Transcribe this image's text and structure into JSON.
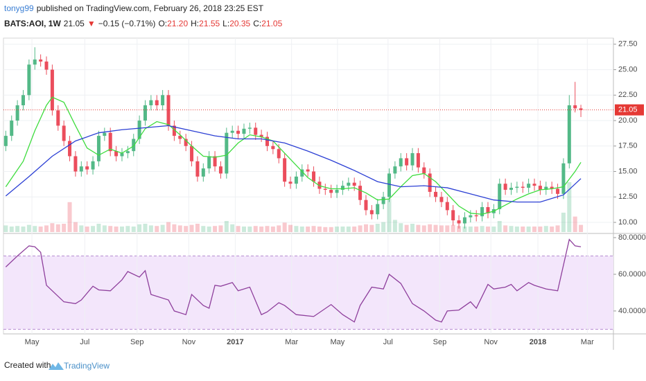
{
  "header": {
    "author": "tonyg99",
    "published": "published on TradingView.com, February 26, 2018 23:25 EST",
    "symbol": "BATS:AOI, 1W",
    "last": "21.05",
    "arrow": "▼",
    "change": "−0.15 (−0.71%)",
    "ohlc": [
      {
        "key": "O:",
        "value": "21.20"
      },
      {
        "key": "H:",
        "value": "21.55"
      },
      {
        "key": "L:",
        "value": "20.35"
      },
      {
        "key": "C:",
        "value": "21.05"
      }
    ]
  },
  "footer": {
    "created": "Created with",
    "brand": "TradingView"
  },
  "chart_data": {
    "type": "candlestick",
    "up_color": "#53b987",
    "down_color": "#eb4d5c",
    "open": [
      17.5,
      18.5,
      20,
      21.5,
      22.5,
      25.5,
      26,
      25.8,
      25,
      21,
      19.5,
      18,
      16.5,
      15,
      15.5,
      15.2,
      16,
      18.5,
      18.8,
      17,
      16.5,
      16.8,
      17,
      18.2,
      20,
      21.5,
      22,
      21.5,
      22.5,
      19.5,
      18.5,
      18.2,
      17.5,
      16,
      14.5,
      15.3,
      16.5,
      15.5,
      14.8,
      18.8,
      19,
      18.7,
      19.2,
      19.3,
      18.6,
      18.4,
      17.5,
      17.2,
      16.3,
      14,
      13.8,
      14.5,
      15.2,
      15,
      14,
      13.3,
      13.2,
      12.9,
      13.2,
      13.6,
      13.9,
      13.6,
      12.2,
      11.2,
      10.8,
      11.8,
      12.5,
      14.8,
      15.5,
      16.3,
      15.6,
      16.8,
      15.4,
      14.8,
      13,
      12.5,
      12,
      11.2,
      10.2,
      9.9,
      10.5,
      10.7,
      10.6,
      11.5,
      10.9,
      11.3,
      13.8,
      13.2,
      13.4,
      13.5,
      13.4,
      13.8,
      13.6,
      13.2,
      13.5,
      13.3,
      12.8,
      15.8,
      21.5,
      21.2
    ],
    "high": [
      19,
      20.5,
      22,
      23,
      26,
      27.2,
      26.5,
      26.3,
      25.5,
      21.5,
      20,
      18.5,
      17,
      16,
      16,
      16.5,
      19,
      19.3,
      19.3,
      17.5,
      17.3,
      17.5,
      18.7,
      20.5,
      22,
      22.5,
      22.5,
      23,
      23,
      20,
      19,
      18.7,
      18,
      16.5,
      15.8,
      17,
      17,
      16,
      19.3,
      19.5,
      19.5,
      19.7,
      19.8,
      19.8,
      19.1,
      18.9,
      18,
      17.7,
      16.8,
      14.5,
      15,
      15.7,
      15.7,
      15.5,
      14.5,
      13.8,
      13.7,
      13.7,
      14.1,
      14.4,
      14.4,
      14.1,
      12.7,
      11.7,
      12.3,
      13,
      15.3,
      16,
      16.8,
      16.8,
      17.3,
      17.3,
      15.9,
      15.3,
      13.5,
      13,
      12.5,
      11.7,
      10.7,
      11,
      11.2,
      11.2,
      12,
      12,
      11.8,
      14.3,
      14.3,
      13.9,
      14,
      14,
      14.3,
      14.3,
      14.1,
      14,
      14,
      13.8,
      16.3,
      22.5,
      23.8,
      21.55
    ],
    "low": [
      17,
      18,
      19.5,
      21,
      22,
      25,
      25.3,
      24.5,
      20.5,
      19,
      17.5,
      16,
      14.5,
      14.5,
      14.7,
      14.7,
      15.5,
      18,
      16.5,
      16,
      16,
      16.3,
      16.5,
      17.7,
      19.5,
      21,
      21,
      21,
      19,
      18,
      17.7,
      17,
      15.5,
      14,
      14,
      14.8,
      15,
      14.3,
      14.3,
      18.3,
      18.2,
      18.2,
      18.7,
      18.1,
      17.9,
      17,
      16.7,
      15.8,
      13.5,
      13.3,
      13.3,
      14,
      14.5,
      13.5,
      12.8,
      12.7,
      12.4,
      12.4,
      12.7,
      13.1,
      13.1,
      11.7,
      10.7,
      10.3,
      10.3,
      11.3,
      12,
      14.3,
      15,
      15.1,
      15.1,
      14.9,
      14.3,
      12.5,
      12,
      11.5,
      10.7,
      9.7,
      9.4,
      9.4,
      10,
      10.1,
      10.1,
      10.4,
      10.4,
      10.8,
      12.7,
      12.7,
      12.9,
      12.9,
      12.9,
      13.1,
      12.7,
      12.7,
      12.8,
      12.3,
      12.3,
      15.3,
      20.8,
      20.35
    ],
    "close": [
      18.5,
      20,
      21.5,
      22.5,
      25.5,
      26,
      25.8,
      25,
      21,
      19.5,
      18,
      16.5,
      15,
      15.5,
      15.2,
      16,
      18.5,
      18.8,
      17,
      16.5,
      16.8,
      17,
      18.2,
      20,
      21.5,
      22,
      21.5,
      22.5,
      19.5,
      18.5,
      18.2,
      17.5,
      16,
      14.5,
      15.3,
      16.5,
      15.5,
      14.8,
      18.8,
      19,
      18.7,
      19.2,
      19.3,
      18.6,
      18.4,
      17.5,
      17.2,
      16.3,
      14,
      13.8,
      14.5,
      15.2,
      15,
      14,
      13.3,
      13.2,
      12.9,
      13.2,
      13.6,
      13.9,
      13.6,
      12.2,
      11.2,
      10.8,
      11.8,
      12.5,
      14.8,
      15.5,
      16.3,
      15.6,
      16.8,
      15.4,
      14.8,
      13,
      12.5,
      12,
      11.2,
      10.2,
      9.9,
      10.5,
      10.7,
      10.6,
      11.5,
      10.9,
      11.3,
      13.8,
      13.2,
      13.4,
      13.5,
      13.4,
      13.8,
      13.6,
      13.2,
      13.5,
      13.3,
      12.8,
      15.8,
      21.5,
      21.2,
      21.05
    ],
    "volume": [
      1.2,
      1,
      1.1,
      1,
      1.3,
      1.1,
      1,
      1.2,
      1.6,
      1.4,
      1.5,
      5.4,
      1.8,
      1.2,
      1,
      1.1,
      1.5,
      1.2,
      1.1,
      1,
      1,
      1.1,
      1,
      1.4,
      1.5,
      1.2,
      1.1,
      1.3,
      1.8,
      1.4,
      1.2,
      1.1,
      1.3,
      1.5,
      1.1,
      1,
      1.1,
      1.2,
      2,
      1.4,
      1.1,
      1,
      1,
      1.1,
      1,
      1.1,
      1,
      1.2,
      1.7,
      1.3,
      1.1,
      1,
      1,
      1.1,
      1,
      0.9,
      0.9,
      1,
      1,
      1,
      1,
      1.2,
      1.4,
      1.3,
      1.5,
      1.8,
      6,
      2.2,
      1.6,
      1.3,
      1.5,
      1.3,
      1.2,
      1.4,
      1.3,
      1.2,
      1.2,
      1.3,
      1.1,
      1,
      1,
      1,
      1.1,
      1,
      1,
      2,
      1.2,
      1.1,
      1,
      1,
      1,
      1,
      1,
      1.1,
      1,
      1.2,
      3.5,
      9,
      2.8,
      1.3
    ],
    "volume_lim": [
      0,
      10
    ],
    "ylim": [
      9.05,
      28.1
    ],
    "yticks": [
      {
        "value": 10,
        "label": "10.00"
      },
      {
        "value": 12.5,
        "label": "12.50"
      },
      {
        "value": 15,
        "label": "15.00"
      },
      {
        "value": 17.5,
        "label": "17.50"
      },
      {
        "value": 20,
        "label": "20.00"
      },
      {
        "value": 22.5,
        "label": "22.50"
      },
      {
        "value": 25,
        "label": "25.00"
      },
      {
        "value": 27.5,
        "label": "27.50"
      }
    ],
    "xlim": [
      -0.4,
      104.6
    ],
    "xticks": [
      {
        "value": 4.5,
        "label": "May"
      },
      {
        "value": 13.6,
        "label": "Jul"
      },
      {
        "value": 22.6,
        "label": "Sep"
      },
      {
        "value": 31.5,
        "label": "Nov"
      },
      {
        "value": 39.5,
        "label": "2017"
      },
      {
        "value": 49.2,
        "label": "Mar"
      },
      {
        "value": 57.1,
        "label": "May"
      },
      {
        "value": 65.8,
        "label": "Jul"
      },
      {
        "value": 74.7,
        "label": "Sep"
      },
      {
        "value": 83.5,
        "label": "Nov"
      },
      {
        "value": 91.6,
        "label": "2018"
      },
      {
        "value": 100.1,
        "label": "Mar"
      }
    ],
    "last_price": {
      "value": 21.05,
      "label": "21.05",
      "color": "#e53935"
    },
    "overlays": [
      {
        "color": "#3ddc3d",
        "x": [
          0,
          3,
          5,
          7,
          8,
          10,
          12,
          14,
          16,
          18,
          20,
          22,
          24,
          26,
          28,
          30,
          32,
          34,
          36,
          38,
          40,
          42,
          44,
          46,
          48,
          50,
          52,
          54,
          56,
          58,
          60,
          62,
          64,
          66,
          68,
          70,
          72,
          74,
          76,
          78,
          80,
          82,
          84,
          86,
          88,
          90,
          92,
          94,
          96,
          98,
          99
        ],
        "values": [
          13.5,
          16,
          19,
          21.5,
          22.3,
          21.8,
          19.5,
          17.3,
          16.6,
          17.2,
          16.8,
          17.5,
          19.2,
          19.9,
          19.6,
          18.6,
          17.5,
          16.5,
          16.4,
          16.6,
          17.8,
          18.6,
          18.4,
          18,
          16.8,
          15.6,
          14.4,
          13.6,
          13.3,
          13.3,
          13.4,
          12.9,
          12.2,
          12.3,
          13.5,
          14.6,
          14.8,
          14,
          12.8,
          11.6,
          10.9,
          10.8,
          11.1,
          11.7,
          12.3,
          12.8,
          13.2,
          13.3,
          13.5,
          15,
          15.9
        ]
      },
      {
        "color": "#2b3fd4",
        "x": [
          0,
          4,
          8,
          12,
          16,
          20,
          24,
          28,
          32,
          36,
          40,
          44,
          48,
          52,
          56,
          60,
          64,
          68,
          72,
          76,
          80,
          84,
          88,
          92,
          96,
          99
        ],
        "values": [
          12.6,
          14.5,
          16.5,
          18,
          18.8,
          19.1,
          19.3,
          19.5,
          19,
          18.5,
          18.2,
          18.2,
          17.8,
          17,
          16.1,
          15.1,
          14,
          13.5,
          13.6,
          13.4,
          12.8,
          12.2,
          12,
          12,
          12.7,
          14.3
        ]
      }
    ],
    "rsi": {
      "color": "#8e3f9c",
      "band": [
        30,
        70
      ],
      "band_color": "#f3e6fb",
      "ylim": [
        27.5,
        81.9
      ],
      "yticks": [
        {
          "value": 40,
          "label": "40.0000"
        },
        {
          "value": 60,
          "label": "60.0000"
        },
        {
          "value": 80,
          "label": "80.0000"
        }
      ],
      "x": [
        0,
        2,
        4,
        5,
        6,
        7,
        10,
        12,
        13,
        15,
        16,
        18,
        20,
        21,
        23,
        24,
        25,
        28,
        29,
        31,
        32,
        34,
        35,
        36,
        37,
        39,
        40,
        42,
        44,
        45,
        47,
        48,
        50,
        53,
        56,
        58,
        60,
        61,
        63,
        65,
        66,
        68,
        70,
        72,
        74,
        75,
        76,
        78,
        80,
        81,
        83,
        84,
        86,
        87,
        88,
        90,
        91,
        93,
        95,
        97,
        98,
        99
      ],
      "values": [
        64,
        70,
        75.5,
        75,
        72,
        54,
        45,
        44,
        46,
        53.5,
        51.5,
        51,
        57,
        61.5,
        58.5,
        62,
        49,
        46,
        40,
        38,
        49,
        43,
        41.5,
        54,
        53.5,
        55.5,
        51,
        53,
        38,
        39.5,
        44.5,
        43,
        38,
        37,
        43.5,
        38,
        34,
        43,
        53,
        52,
        60,
        55,
        44,
        40,
        35,
        34,
        40,
        40.5,
        45,
        41.5,
        54.5,
        52,
        53,
        54.5,
        51,
        55.5,
        54,
        52,
        51,
        79,
        75.5,
        75
      ]
    }
  }
}
